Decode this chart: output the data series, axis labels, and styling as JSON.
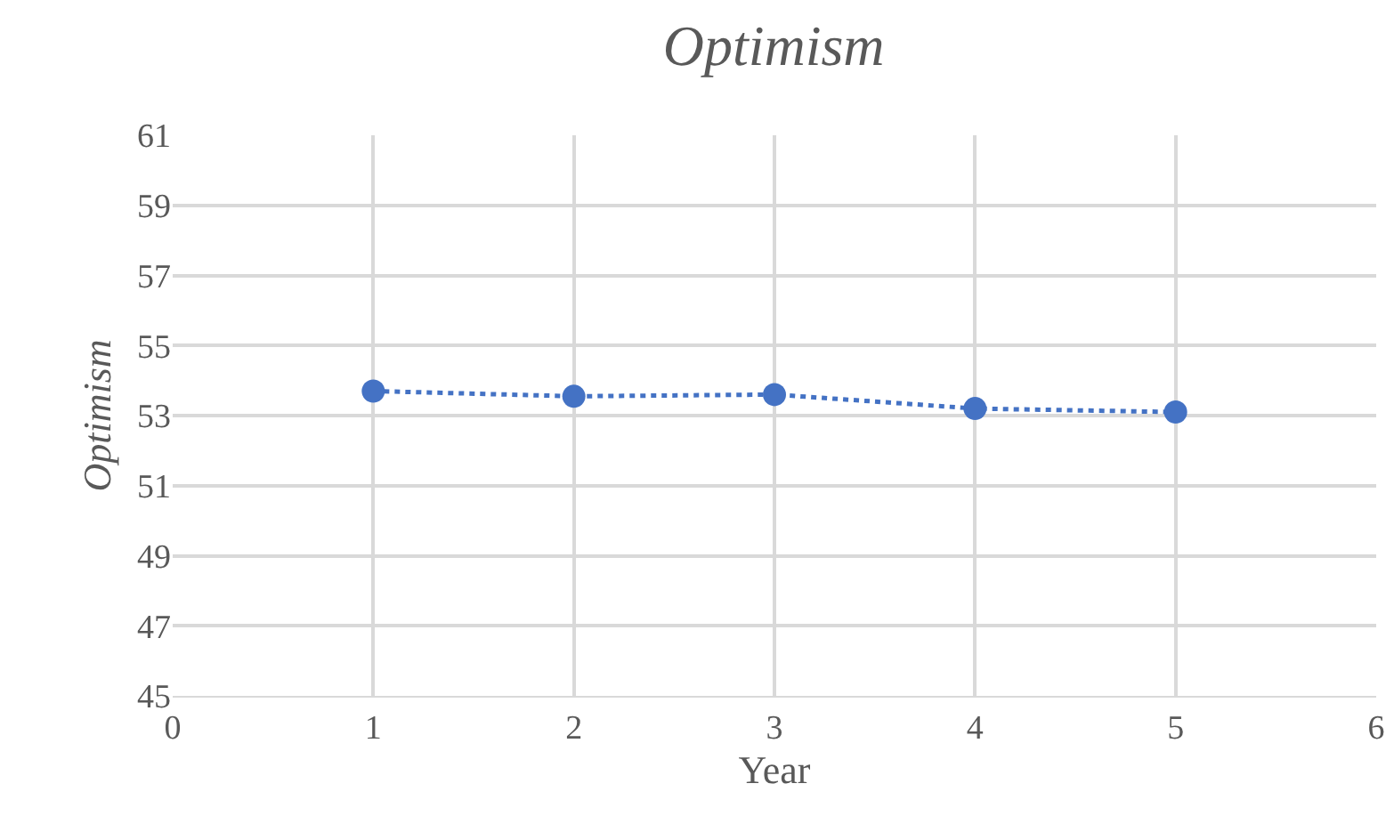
{
  "chart_data": {
    "type": "line",
    "title": "Optimism",
    "xlabel": "Year",
    "ylabel": "Optimism",
    "x": [
      1,
      2,
      3,
      4,
      5
    ],
    "series": [
      {
        "color": "#4472c4",
        "values": [
          53.7,
          53.55,
          53.6,
          53.2,
          53.1
        ]
      }
    ],
    "xlim": [
      0,
      6
    ],
    "xticks": [
      0,
      1,
      2,
      3,
      4,
      5,
      6
    ],
    "ylim": [
      45,
      61
    ],
    "yticks": [
      45,
      47,
      49,
      51,
      53,
      55,
      57,
      59,
      61
    ],
    "grid": true,
    "marker": "circle",
    "line_style": "dotted"
  }
}
